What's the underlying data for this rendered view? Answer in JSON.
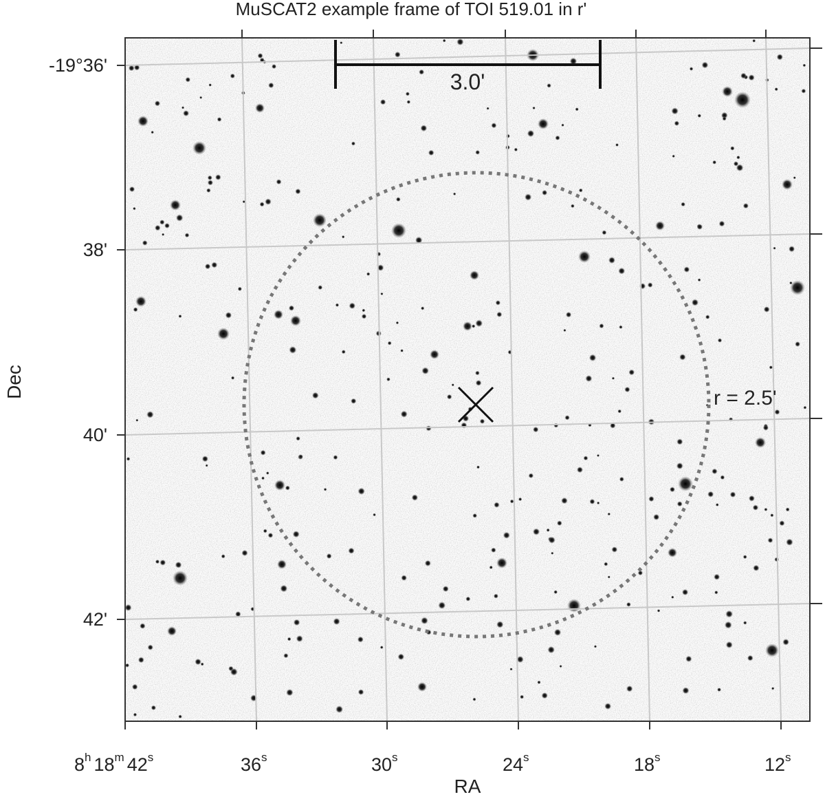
{
  "title": "MuSCAT2 example frame of TOI 519.01 in r'",
  "x_axis": {
    "label": "RA",
    "ticks": [
      [
        "8",
        "h",
        "18",
        "m",
        "42",
        "s"
      ],
      [
        "36",
        "s"
      ],
      [
        "30",
        "s"
      ],
      [
        "24",
        "s"
      ],
      [
        "18",
        "s"
      ],
      [
        "12",
        "s"
      ]
    ]
  },
  "y_axis": {
    "label": "Dec",
    "ticks": [
      "-19°36'",
      "38'",
      "40'",
      "42'"
    ]
  },
  "annotations": {
    "scale_bar": "3.0'",
    "radius": "r = 2.5'"
  }
}
